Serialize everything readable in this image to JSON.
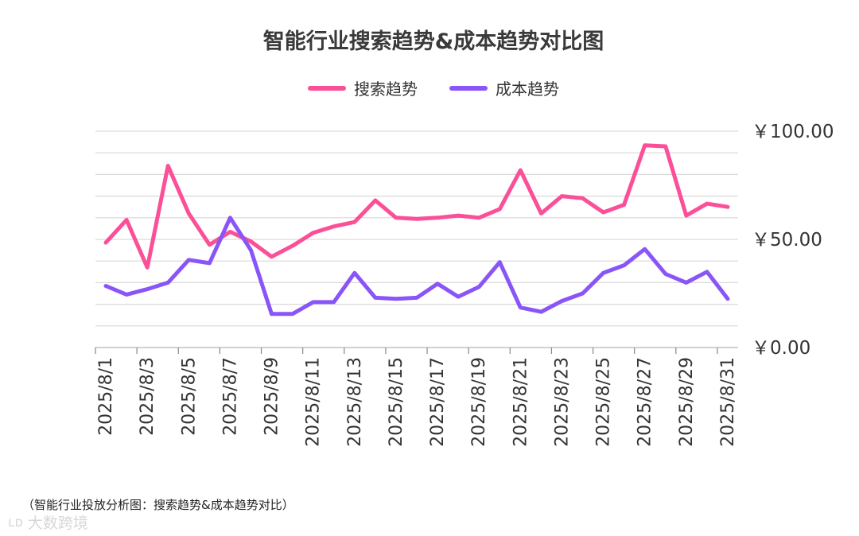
{
  "chart_data": {
    "type": "line",
    "title": "智能行业搜索趋势&成本趋势对比图",
    "xlabel": "",
    "ylabel": "",
    "ylim": [
      0,
      100
    ],
    "yticks": [
      "￥0.00",
      "￥50.00",
      "￥100.00"
    ],
    "grid": true,
    "legend_position": "top",
    "categories": [
      "2025/8/1",
      "2025/8/2",
      "2025/8/3",
      "2025/8/4",
      "2025/8/5",
      "2025/8/6",
      "2025/8/7",
      "2025/8/8",
      "2025/8/9",
      "2025/8/10",
      "2025/8/11",
      "2025/8/12",
      "2025/8/13",
      "2025/8/14",
      "2025/8/15",
      "2025/8/16",
      "2025/8/17",
      "2025/8/18",
      "2025/8/19",
      "2025/8/20",
      "2025/8/21",
      "2025/8/22",
      "2025/8/23",
      "2025/8/24",
      "2025/8/25",
      "2025/8/26",
      "2025/8/27",
      "2025/8/28",
      "2025/8/29",
      "2025/8/30",
      "2025/8/31"
    ],
    "tick_labels": [
      "2025/8/1",
      "2025/8/3",
      "2025/8/5",
      "2025/8/7",
      "2025/8/9",
      "2025/8/11",
      "2025/8/13",
      "2025/8/15",
      "2025/8/17",
      "2025/8/19",
      "2025/8/21",
      "2025/8/23",
      "2025/8/25",
      "2025/8/27",
      "2025/8/29",
      "2025/8/31"
    ],
    "series": [
      {
        "name": "搜索趋势",
        "color": "#fb4f97",
        "values": [
          48.5,
          59,
          37,
          84,
          62,
          47.5,
          53.5,
          49,
          42,
          47,
          53,
          56,
          58,
          68,
          60,
          59.5,
          60,
          61,
          60,
          64,
          82,
          62,
          70,
          69,
          62.5,
          66,
          93.5,
          93,
          61,
          66.5,
          65
        ]
      },
      {
        "name": "成本趋势",
        "color": "#8a55f8",
        "values": [
          28.5,
          24.5,
          27,
          30,
          40.5,
          39,
          60,
          45,
          15.5,
          15.5,
          21,
          21,
          34.5,
          23,
          22.5,
          23,
          29.5,
          23.5,
          28,
          39.5,
          18.5,
          16.5,
          21.5,
          25,
          34.5,
          38,
          45.5,
          34,
          30,
          35,
          22.5
        ]
      }
    ]
  },
  "footnote": "（智能行业投放分析图：搜索趋势&成本趋势对比）",
  "watermark": {
    "logo": "ʟᴅ",
    "text": "大数跨境"
  }
}
